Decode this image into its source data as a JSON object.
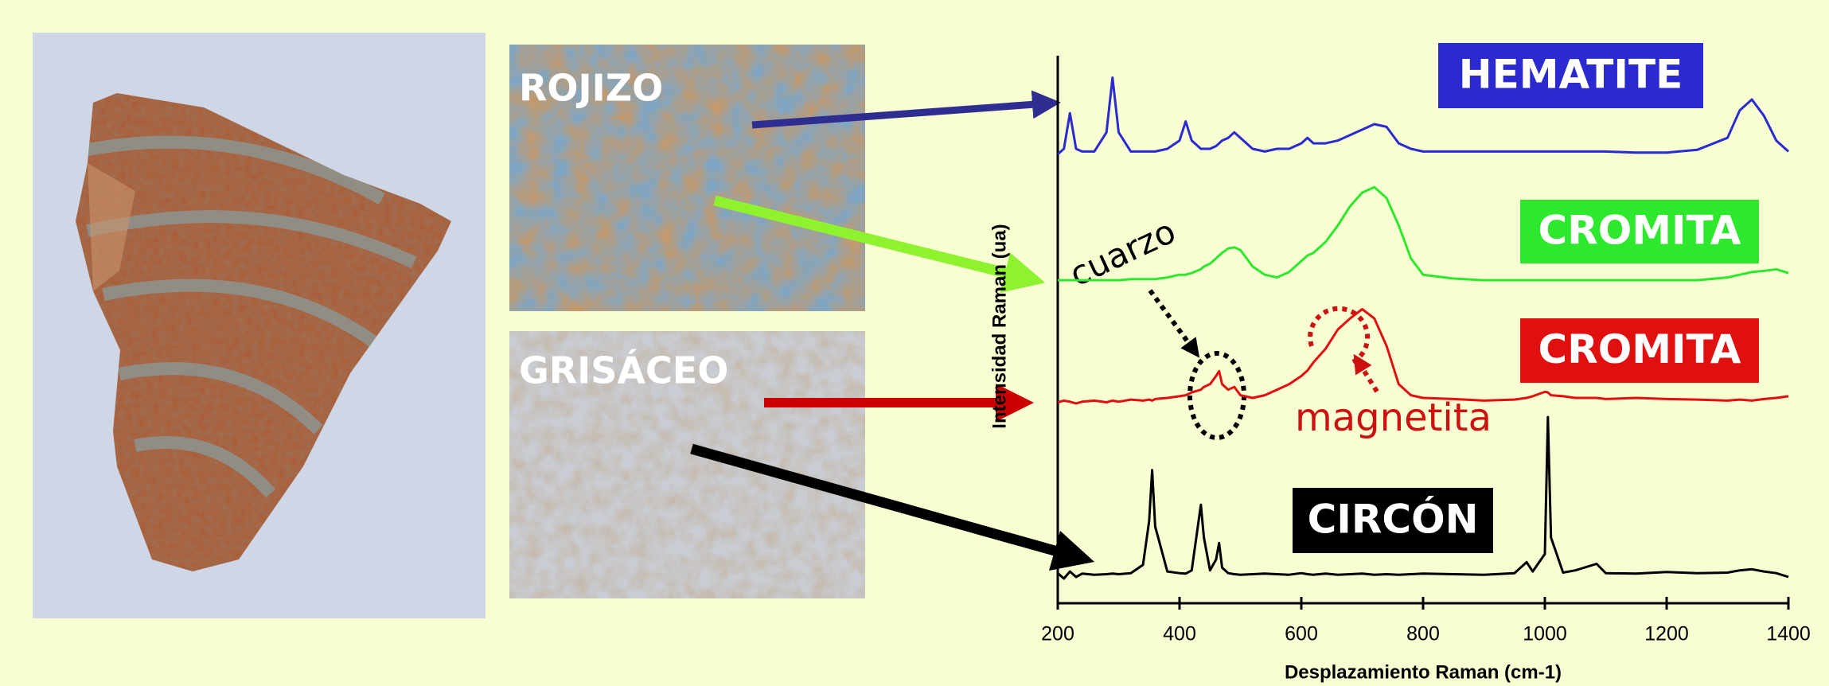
{
  "photos": {
    "labels": [
      "ROJIZO",
      "GRISÁCEO"
    ]
  },
  "chart_data": {
    "type": "line",
    "x_label": "Desplazamiento Raman (cm-1)",
    "y_label": "Intensidad Raman (ua)",
    "annotations": [
      "cuarzo",
      "magnetita"
    ],
    "x": [
      200,
      210,
      220,
      230,
      240,
      260,
      280,
      290,
      300,
      320,
      340,
      350,
      355,
      360,
      380,
      400,
      410,
      420,
      435,
      440,
      450,
      460,
      465,
      470,
      480,
      490,
      500,
      520,
      540,
      560,
      580,
      600,
      610,
      620,
      640,
      660,
      680,
      700,
      720,
      740,
      760,
      780,
      800,
      850,
      900,
      950,
      970,
      980,
      1000,
      1005,
      1010,
      1030,
      1050,
      1085,
      1100,
      1150,
      1200,
      1250,
      1300,
      1320,
      1340,
      1360,
      1380,
      1400
    ],
    "xlim": [
      200,
      1400
    ],
    "xticks": [
      200,
      400,
      600,
      800,
      1000,
      1200,
      1400
    ],
    "ylim": [
      0,
      100
    ],
    "series": [
      {
        "name": "HEMATITE",
        "color": "#2a2ad0",
        "values": [
          82,
          83,
          89.5,
          83,
          82.5,
          82.5,
          86,
          96,
          86,
          82.5,
          82.5,
          82.5,
          82.5,
          82.5,
          83,
          84.5,
          88,
          84.5,
          83,
          83,
          83,
          83.5,
          84,
          84.5,
          85,
          86,
          85,
          83,
          82.5,
          83,
          83,
          84,
          85,
          84,
          84,
          84.5,
          85.5,
          86.5,
          87.5,
          87,
          84,
          83,
          82.5,
          82.5,
          82.5,
          82.5,
          82.5,
          82.5,
          82.5,
          82.5,
          82.5,
          82.5,
          82.5,
          82.5,
          82.5,
          82.3,
          82.3,
          82.8,
          85,
          90,
          92,
          89,
          84.5,
          82.5
        ]
      },
      {
        "name": "CROMITA",
        "color": "#2ee82e",
        "values": [
          59,
          59,
          59,
          59,
          59,
          59,
          59,
          59,
          59,
          59.2,
          59.2,
          59.2,
          59.2,
          59.2,
          59.5,
          60,
          60,
          60.3,
          61,
          61.5,
          62,
          63,
          63.5,
          64,
          64.8,
          65,
          64.5,
          61.5,
          60,
          59.5,
          60.5,
          62.5,
          63.5,
          64,
          66,
          69,
          72.5,
          75,
          76,
          74,
          69,
          63,
          60,
          59.3,
          59,
          59,
          59,
          59,
          59,
          59,
          59,
          59,
          59,
          59,
          59,
          59,
          59,
          59,
          59.5,
          60,
          60.5,
          60.7,
          61,
          60.3
        ]
      },
      {
        "name": "CROMITA",
        "color": "#e01010",
        "values": [
          36.7,
          37,
          36.8,
          36.5,
          36.8,
          37,
          36.7,
          37,
          36.8,
          37.2,
          37,
          37.2,
          37,
          37.3,
          37.5,
          37.8,
          38,
          38.5,
          39,
          39.5,
          40,
          41.5,
          42.4,
          40,
          39,
          39.5,
          38,
          37.5,
          38,
          39,
          40,
          41.5,
          42.5,
          44,
          46.5,
          50,
          52,
          53.7,
          52,
          47,
          40,
          38,
          37.5,
          37.3,
          37,
          37.2,
          37.5,
          37.8,
          38.6,
          38.5,
          38,
          37.8,
          37.5,
          37.5,
          37.3,
          37.5,
          37.3,
          37.2,
          37,
          37.2,
          37,
          37.3,
          37.5,
          37.8
        ]
      },
      {
        "name": "CIRCÓN",
        "color": "#000000",
        "values": [
          5.5,
          4.5,
          5.8,
          4.8,
          5.4,
          5.2,
          5.3,
          5.4,
          5.3,
          5.5,
          7,
          15,
          24.3,
          14,
          5.8,
          5.5,
          5.4,
          6,
          18,
          12,
          6,
          8,
          11,
          6.5,
          5.5,
          5.3,
          5.2,
          5.3,
          5.4,
          5.3,
          5.2,
          5.5,
          5.3,
          5.2,
          5.4,
          5.2,
          5.3,
          5.4,
          5.2,
          5.3,
          5.2,
          5.3,
          5.4,
          5.3,
          5.2,
          5.5,
          7.5,
          5.8,
          9,
          34,
          12,
          5.6,
          6,
          7.2,
          5.5,
          5.4,
          5.7,
          5.5,
          5.6,
          6,
          6.2,
          5.8,
          5.5,
          4.8
        ]
      }
    ]
  }
}
